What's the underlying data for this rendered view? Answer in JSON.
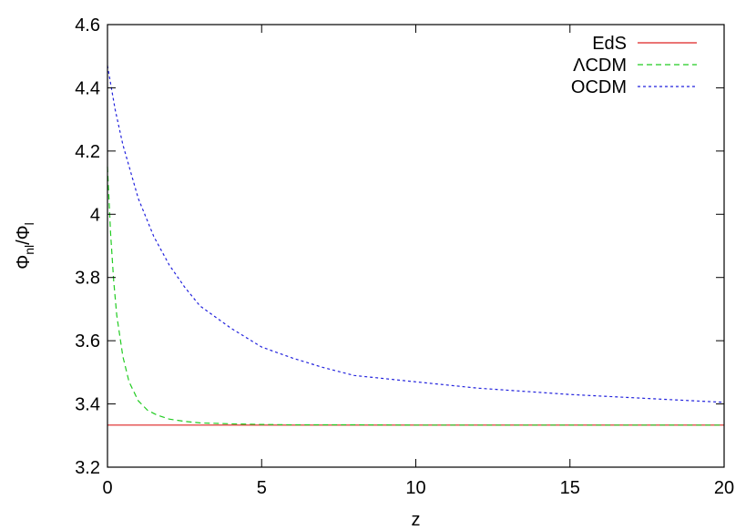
{
  "chart_data": {
    "type": "line",
    "xlabel": "z",
    "ylabel": {
      "main": "Φ",
      "sub_nl": "nl",
      "slash": "/Φ",
      "sub_l": "l"
    },
    "xlim": [
      0,
      20
    ],
    "ylim": [
      3.2,
      4.6
    ],
    "xticks": [
      0,
      5,
      10,
      15,
      20
    ],
    "xtick_labels": [
      "0",
      "5",
      "10",
      "15",
      "20"
    ],
    "yticks": [
      3.2,
      3.4,
      3.6,
      3.8,
      4.0,
      4.2,
      4.4,
      4.6
    ],
    "ytick_labels": [
      "3.2",
      "3.4",
      "3.6",
      "3.8",
      "4",
      "4.2",
      "4.4",
      "4.6"
    ],
    "grid": false,
    "legend_position": "top-right",
    "series": [
      {
        "name": "EdS",
        "color": "#dd2222",
        "dash": "solid",
        "x": [
          0,
          20
        ],
        "y": [
          3.333,
          3.333
        ]
      },
      {
        "name": "ΛCDM",
        "color": "#22cc22",
        "dash": "dashed",
        "x": [
          0,
          0.1,
          0.2,
          0.3,
          0.5,
          0.7,
          1.0,
          1.3,
          1.6,
          2.0,
          2.5,
          3.0,
          4.0,
          5.0,
          6.0,
          8.0,
          10.0,
          15.0,
          20.0
        ],
        "y": [
          4.15,
          3.94,
          3.79,
          3.68,
          3.55,
          3.47,
          3.41,
          3.38,
          3.365,
          3.352,
          3.345,
          3.34,
          3.337,
          3.335,
          3.334,
          3.334,
          3.333,
          3.333,
          3.333
        ]
      },
      {
        "name": "OCDM",
        "color": "#2222dd",
        "dash": "dotted",
        "x": [
          0,
          0.25,
          0.5,
          1.0,
          1.5,
          2.0,
          2.5,
          3.0,
          4.0,
          5.0,
          6.0,
          7.0,
          8.0,
          10.0,
          12.0,
          15.0,
          18.0,
          20.0
        ],
        "y": [
          4.47,
          4.33,
          4.22,
          4.05,
          3.93,
          3.84,
          3.77,
          3.71,
          3.64,
          3.58,
          3.545,
          3.515,
          3.49,
          3.47,
          3.45,
          3.43,
          3.415,
          3.405
        ]
      }
    ]
  }
}
